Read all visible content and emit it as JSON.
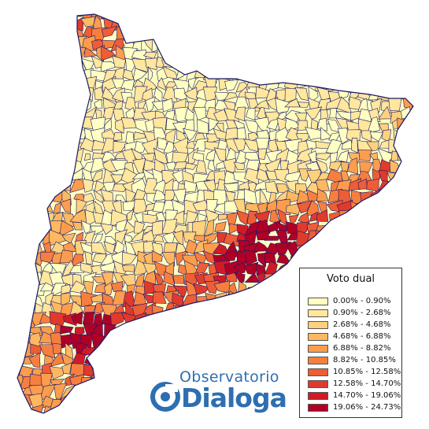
{
  "legend": {
    "title": "Voto dual",
    "classes": [
      {
        "label": "0.00% - 0.90%",
        "color": "#ffffc2"
      },
      {
        "label": "0.90% - 2.68%",
        "color": "#ffe79e"
      },
      {
        "label": "2.68% - 4.68%",
        "color": "#fed17c"
      },
      {
        "label": "4.68% - 6.88%",
        "color": "#fdb861"
      },
      {
        "label": "6.88% - 8.82%",
        "color": "#fc9d4d"
      },
      {
        "label": "8.82% - 10.85%",
        "color": "#f67f3f"
      },
      {
        "label": "10.85% - 12.58%",
        "color": "#ee5d35"
      },
      {
        "label": "12.58% - 14.70%",
        "color": "#e03a2c"
      },
      {
        "label": "14.70% - 19.06%",
        "color": "#d01b27"
      },
      {
        "label": "19.06% - 24.73%",
        "color": "#b00026"
      }
    ]
  },
  "logo": {
    "top_text": "Observatorio",
    "bottom_text": "Dialoga",
    "color": "#2d6fb0"
  },
  "map": {
    "border_color": "#1a1a66"
  }
}
